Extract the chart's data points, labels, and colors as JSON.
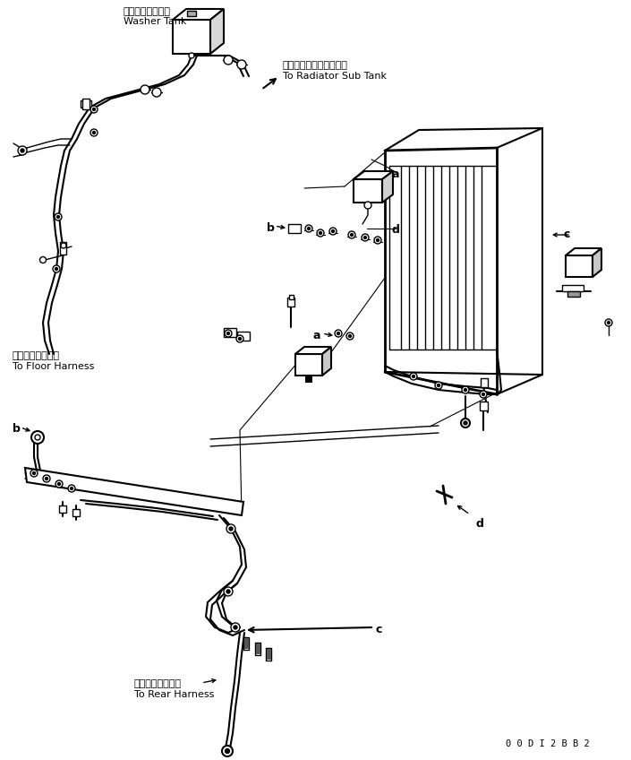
{
  "background_color": "#ffffff",
  "line_color": "#000000",
  "fig_width": 7.05,
  "fig_height": 8.48,
  "dpi": 100,
  "labels": {
    "washer_tank_jp": "ウォッシャタンク",
    "washer_tank_en": "Washer Tank",
    "radiator_sub_tank_jp": "ラジエータサブタンクへ",
    "radiator_sub_tank_en": "To Radiator Sub Tank",
    "floor_harness_jp": "フロアハーネスへ",
    "floor_harness_en": "To Floor Harness",
    "rear_harness_jp": "リヤーハーネスへ",
    "rear_harness_en": "To Rear Harness",
    "doc_number": "0 0 D I 2 B B 2"
  }
}
